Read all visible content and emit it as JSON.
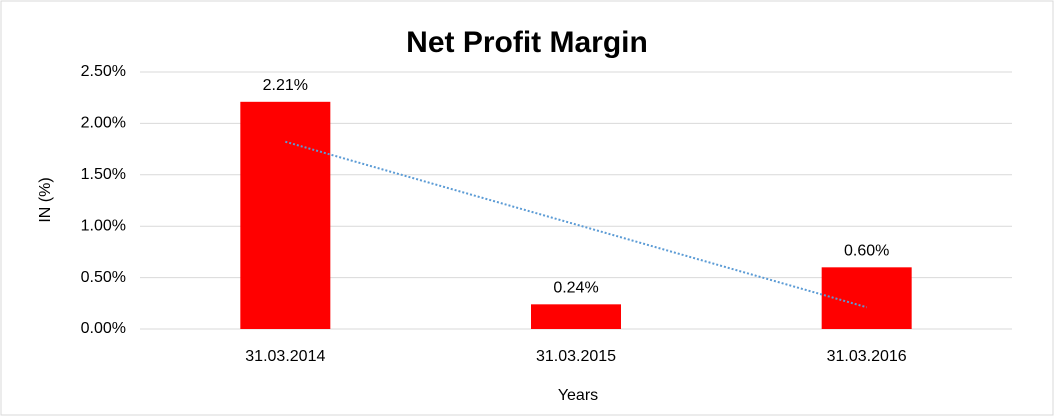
{
  "chart_data": {
    "type": "bar",
    "title": "Net Profit Margin",
    "x_label": "Years",
    "y_label": "IN (%)",
    "categories": [
      "31.03.2014",
      "31.03.2015",
      "31.03.2016"
    ],
    "values": [
      2.21,
      0.24,
      0.6
    ],
    "value_labels": [
      "2.21%",
      "0.24%",
      "0.60%"
    ],
    "color": "#ff0000",
    "ylim": [
      0,
      2.5
    ],
    "yticks": [
      {
        "value": 0,
        "label": "0.00%"
      },
      {
        "value": 0.5,
        "label": "0.50%"
      },
      {
        "value": 1,
        "label": "1.00%"
      },
      {
        "value": 1.5,
        "label": "1.50%"
      },
      {
        "value": 2,
        "label": "2.00%"
      },
      {
        "value": 2.5,
        "label": "2.50%"
      }
    ],
    "grid": true,
    "trendline": "linear",
    "trendline_color": "#5b9bd5"
  }
}
